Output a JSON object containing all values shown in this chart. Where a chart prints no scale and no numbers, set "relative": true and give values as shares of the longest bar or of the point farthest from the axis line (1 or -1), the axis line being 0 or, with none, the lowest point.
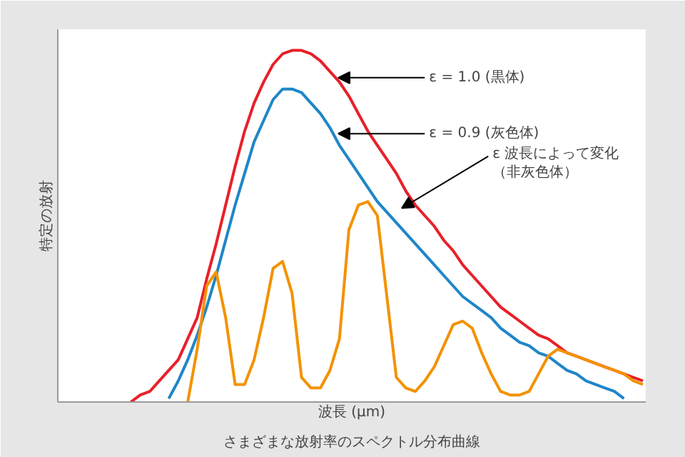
{
  "chart_data": {
    "type": "line",
    "title": "さまざまな放射率のスペクトル分布曲線",
    "xlabel": "波長 (µm)",
    "ylabel": "特定の放射",
    "relative": true,
    "categories": [
      null,
      null,
      null,
      null,
      null,
      null,
      null,
      null,
      null,
      null,
      null,
      null,
      null,
      null,
      null,
      null,
      null,
      null,
      null,
      null,
      null,
      null,
      null,
      null,
      null,
      null,
      null,
      null,
      null,
      null,
      null,
      null,
      null,
      null,
      null,
      null,
      null,
      null,
      null,
      null,
      null,
      null,
      null,
      null,
      null,
      null,
      null,
      null,
      null,
      null,
      null,
      null,
      null,
      null,
      null
    ],
    "series": [
      {
        "color": "#e8202a",
        "values": [
          0.0,
          0.02,
          0.03,
          0.06,
          0.09,
          0.12,
          0.18,
          0.24,
          0.35,
          0.45,
          0.56,
          0.67,
          0.77,
          0.85,
          0.91,
          0.96,
          0.99,
          1.0,
          1.0,
          0.99,
          0.97,
          0.94,
          0.91,
          0.87,
          0.82,
          0.77,
          0.73,
          0.69,
          0.65,
          0.6,
          0.56,
          0.53,
          0.5,
          0.46,
          0.43,
          0.39,
          0.36,
          0.33,
          0.3,
          0.27,
          0.25,
          0.23,
          0.21,
          0.19,
          0.18,
          0.16,
          0.14,
          0.13,
          0.12,
          0.11,
          0.1,
          0.09,
          0.08,
          0.07,
          0.06
        ]
      },
      {
        "color": "#1f86c8",
        "values": [
          null,
          null,
          null,
          null,
          0.01,
          0.06,
          0.12,
          0.19,
          0.27,
          0.36,
          0.46,
          0.56,
          0.65,
          0.74,
          0.8,
          0.86,
          0.89,
          0.89,
          0.88,
          0.85,
          0.82,
          0.78,
          0.73,
          0.69,
          0.65,
          0.61,
          0.57,
          0.54,
          0.51,
          0.48,
          0.45,
          0.42,
          0.39,
          0.36,
          0.33,
          0.3,
          0.28,
          0.26,
          0.24,
          0.21,
          0.19,
          0.17,
          0.16,
          0.14,
          0.13,
          0.11,
          0.09,
          0.08,
          0.06,
          0.05,
          0.04,
          0.03,
          0.01,
          null,
          null
        ]
      },
      {
        "color": "#f39200",
        "values": [
          null,
          null,
          null,
          null,
          null,
          null,
          0.0,
          0.15,
          0.33,
          0.37,
          0.24,
          0.05,
          0.05,
          0.12,
          0.24,
          0.38,
          0.4,
          0.31,
          0.07,
          0.04,
          0.04,
          0.09,
          0.18,
          0.49,
          0.56,
          0.57,
          0.53,
          0.3,
          0.07,
          0.04,
          0.03,
          0.06,
          0.1,
          0.16,
          0.22,
          0.23,
          0.21,
          0.14,
          0.08,
          0.03,
          0.02,
          0.02,
          0.03,
          0.08,
          0.13,
          0.15,
          0.14,
          0.13,
          0.12,
          0.11,
          0.1,
          0.09,
          0.08,
          0.06,
          0.05
        ]
      }
    ],
    "annotations": [
      "ε = 1.0 (黒体)",
      "ε = 0.9 (灰色体)",
      "ε  波長によって変化（非灰色体）"
    ]
  }
}
